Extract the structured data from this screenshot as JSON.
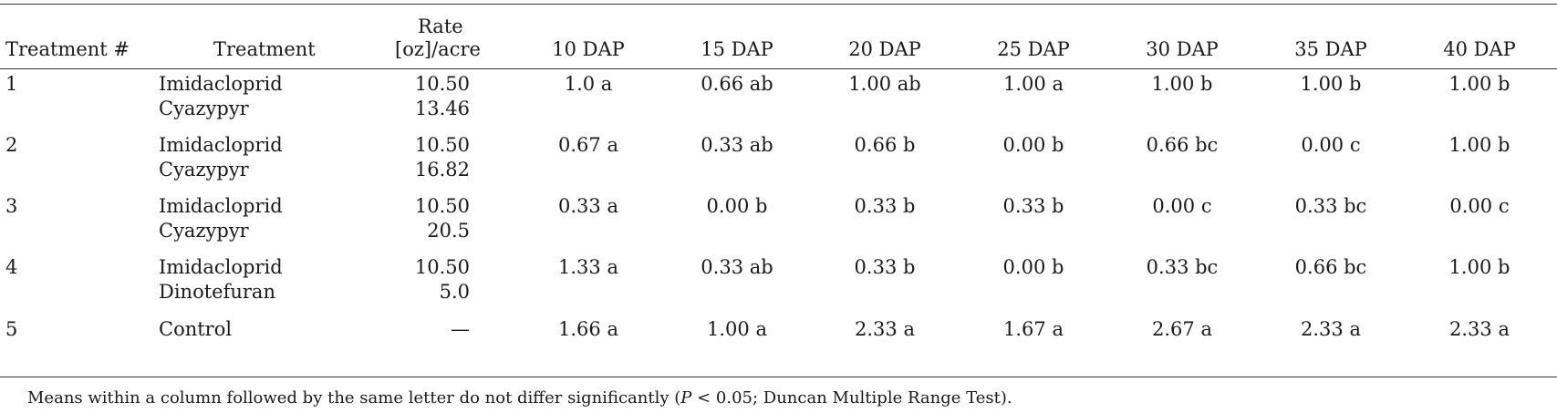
{
  "header": {
    "treatment_num": "Treatment #",
    "treatment": "Treatment",
    "rate_line1": "Rate",
    "rate_line2": "[oz]/acre",
    "days": [
      "10 DAP",
      "15 DAP",
      "20 DAP",
      "25 DAP",
      "30 DAP",
      "35 DAP",
      "40 DAP"
    ]
  },
  "rows": [
    {
      "num": "1",
      "treatments": [
        "Imidacloprid",
        "Cyazypyr"
      ],
      "rates": [
        "10.50",
        "13.46"
      ],
      "values": [
        "1.0 a",
        "0.66 ab",
        "1.00 ab",
        "1.00 a",
        "1.00 b",
        "1.00 b",
        "1.00 b"
      ]
    },
    {
      "num": "2",
      "treatments": [
        "Imidacloprid",
        "Cyazypyr"
      ],
      "rates": [
        "10.50",
        "16.82"
      ],
      "values": [
        "0.67 a",
        "0.33 ab",
        "0.66 b",
        "0.00 b",
        "0.66 bc",
        "0.00 c",
        "1.00 b"
      ]
    },
    {
      "num": "3",
      "treatments": [
        "Imidacloprid",
        "Cyazypyr"
      ],
      "rates": [
        "10.50",
        "20.5"
      ],
      "values": [
        "0.33 a",
        "0.00 b",
        "0.33 b",
        "0.33 b",
        "0.00 c",
        "0.33 bc",
        "0.00 c"
      ]
    },
    {
      "num": "4",
      "treatments": [
        "Imidacloprid",
        "Dinotefuran"
      ],
      "rates": [
        "10.50",
        "5.0"
      ],
      "values": [
        "1.33 a",
        "0.33 ab",
        "0.33 b",
        "0.00 b",
        "0.33 bc",
        "0.66 bc",
        "1.00 b"
      ]
    },
    {
      "num": "5",
      "treatments": [
        "Control"
      ],
      "rates": [
        "—"
      ],
      "values": [
        "1.66 a",
        "1.00 a",
        "2.33 a",
        "1.67 a",
        "2.67 a",
        "2.33 a",
        "2.33 a"
      ]
    }
  ],
  "footnote": {
    "before": "Means within a column followed by the same letter do not differ significantly (",
    "p_symbol": "P",
    "after": " < 0.05; Duncan Multiple Range Test)."
  }
}
